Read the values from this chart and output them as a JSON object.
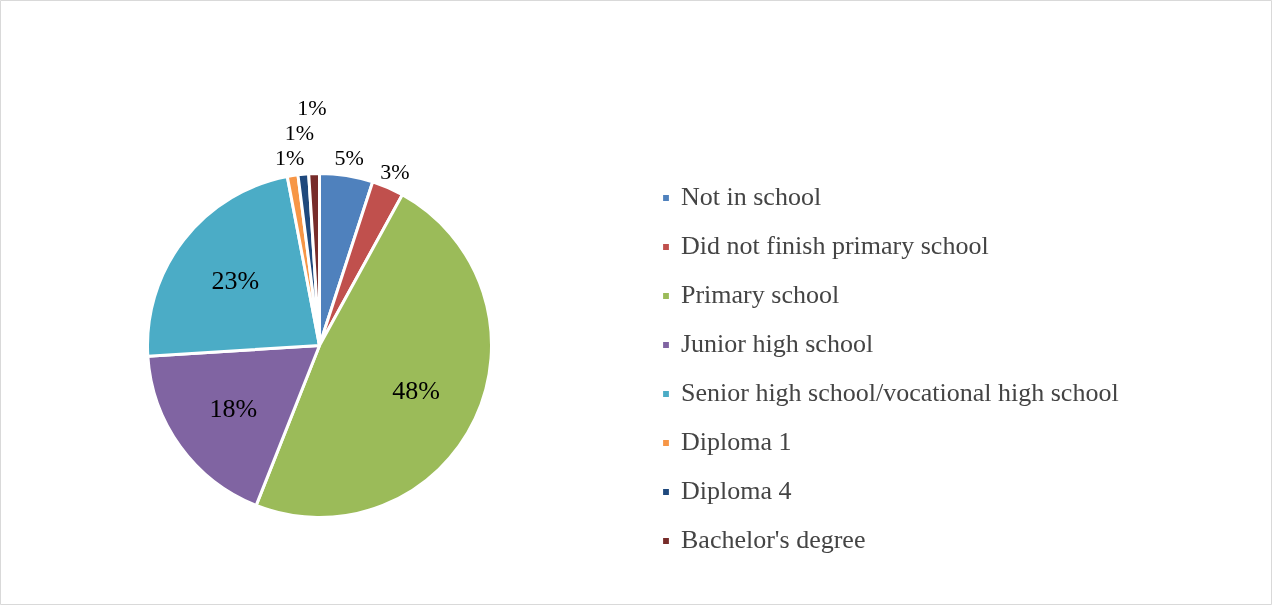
{
  "chart_data": {
    "type": "pie",
    "categories": [
      "Not in school",
      "Did not finish primary school",
      "Primary school",
      "Junior high school",
      "Senior high school/vocational high school",
      "Diploma 1",
      "Diploma 4",
      "Bachelor's degree"
    ],
    "values": [
      5,
      3,
      48,
      18,
      23,
      1,
      1,
      1
    ],
    "colors": [
      "#4f81bd",
      "#c0504d",
      "#9bbb59",
      "#8064a2",
      "#4bacc6",
      "#f79646",
      "#1f497d",
      "#772c2a"
    ],
    "value_labels": [
      "5%",
      "3%",
      "48%",
      "18%",
      "23%",
      "1%",
      "1%",
      "1%"
    ],
    "legend": "right"
  }
}
